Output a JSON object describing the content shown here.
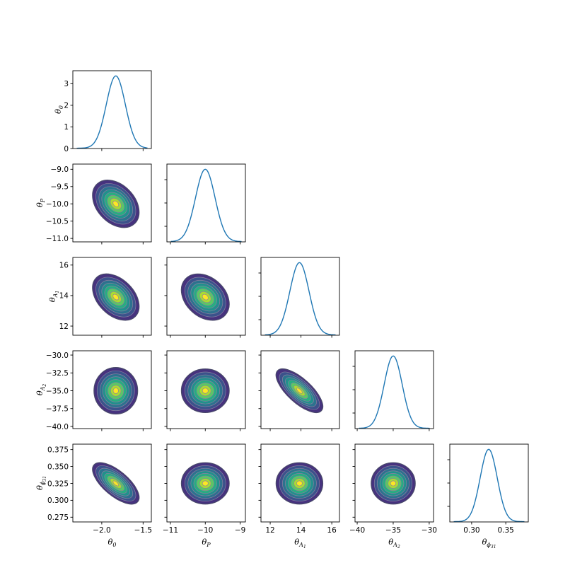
{
  "chart_data": {
    "type": "corner-plot",
    "params": [
      {
        "id": "t0",
        "label": "θ",
        "sub": "0",
        "subsub": "",
        "range": [
          -2.35,
          -1.4
        ],
        "ticks": [
          -2.0,
          -1.5
        ],
        "tick_labels": [
          "−2.0",
          "−1.5"
        ],
        "mean": -1.83,
        "sd": 0.115
      },
      {
        "id": "tP",
        "label": "θ",
        "sub": "P",
        "subsub": "",
        "range": [
          -11.1,
          -8.85
        ],
        "ticks": [
          -11,
          -10,
          -9
        ],
        "tick_labels": [
          "−11",
          "−10",
          "−9"
        ],
        "mean": -10.0,
        "sd": 0.28
      },
      {
        "id": "tA1",
        "label": "θ",
        "sub": "A",
        "subsub": "1",
        "range": [
          11.4,
          16.5
        ],
        "ticks": [
          12,
          14,
          16
        ],
        "tick_labels": [
          "12",
          "14",
          "16"
        ],
        "mean": 13.9,
        "sd": 0.62
      },
      {
        "id": "tA2",
        "label": "θ",
        "sub": "A",
        "subsub": "2",
        "range": [
          -40.3,
          -29.4
        ],
        "ticks": [
          -40,
          -35,
          -30
        ],
        "tick_labels": [
          "−40",
          "−35",
          "−30"
        ],
        "mean": -35.0,
        "sd": 1.25
      },
      {
        "id": "tph",
        "label": "θ",
        "sub": "ϕ",
        "subsub": "31",
        "range": [
          0.268,
          0.383
        ],
        "ticks": [
          0.3,
          0.35
        ],
        "tick_labels": [
          "0.30",
          "0.35"
        ],
        "mean": 0.325,
        "sd": 0.0125
      }
    ],
    "diag_ylim": [
      [
        0,
        3.6
      ],
      [
        -11.1,
        -8.85
      ],
      [
        11.4,
        16.5
      ],
      [
        -40.3,
        -29.4
      ],
      [
        0.268,
        0.383
      ]
    ],
    "diag_yticks": {
      "ticks": [
        0,
        1,
        2,
        3
      ],
      "tick_labels": [
        "0",
        "1",
        "2",
        "3"
      ]
    },
    "row_yticks": [
      {
        "ticks": [
          0,
          1,
          2,
          3
        ],
        "tick_labels": [
          "0",
          "1",
          "2",
          "3"
        ]
      },
      {
        "ticks": [
          -11.0,
          -10.5,
          -10.0,
          -9.5,
          -9.0
        ],
        "tick_labels": [
          "−11.0",
          "−10.5",
          "−10.0",
          "−9.5",
          "−9.0"
        ]
      },
      {
        "ticks": [
          12,
          14,
          16
        ],
        "tick_labels": [
          "12",
          "14",
          "16"
        ]
      },
      {
        "ticks": [
          -40,
          -37.5,
          -35,
          -32.5,
          -30
        ],
        "tick_labels": [
          "−40.0",
          "−37.5",
          "−35.0",
          "−32.5",
          "−30.0"
        ]
      },
      {
        "ticks": [
          0.275,
          0.3,
          0.325,
          0.35,
          0.375
        ],
        "tick_labels": [
          "0.275",
          "0.300",
          "0.325",
          "0.350",
          "0.375"
        ]
      }
    ],
    "diag_density_peak": 3.45,
    "correlations": {
      "1-0": -0.35,
      "2-0": -0.4,
      "2-1": -0.3,
      "3-0": 0.0,
      "3-1": 0.0,
      "3-2": -0.72,
      "4-0": -0.68,
      "4-1": 0.0,
      "4-2": 0.0,
      "4-3": 0.0
    },
    "contour_colors": [
      "#46327e",
      "#3b528b",
      "#2c728e",
      "#21908c",
      "#27ad81",
      "#5cc863",
      "#aadc32",
      "#fde725"
    ],
    "contour_edge_color": "#8a7fa0",
    "line_color": "#1f77b4"
  }
}
